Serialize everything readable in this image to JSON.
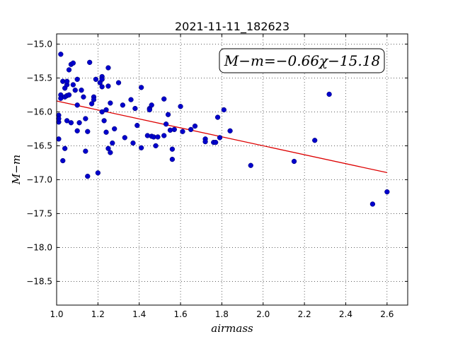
{
  "chart_data": {
    "type": "scatter",
    "title": "2021-11-11_182623",
    "xlabel": "airmass",
    "ylabel": "M−m",
    "annotation": "M−m=−0.66χ−15.18",
    "xlim": [
      1.0,
      2.7
    ],
    "ylim": [
      -18.85,
      -14.85
    ],
    "xticks": [
      1.0,
      1.2,
      1.4,
      1.6,
      1.8,
      2.0,
      2.2,
      2.4,
      2.6
    ],
    "xtick_labels": [
      "1.0",
      "1.2",
      "1.4",
      "1.6",
      "1.8",
      "2.0",
      "2.2",
      "2.4",
      "2.6"
    ],
    "yticks": [
      -15.0,
      -15.5,
      -16.0,
      -16.5,
      -17.0,
      -17.5,
      -18.0,
      -18.5
    ],
    "ytick_labels": [
      "−15.0",
      "−15.5",
      "−16.0",
      "−16.5",
      "−17.0",
      "−17.5",
      "−18.0",
      "−18.5"
    ],
    "grid": true,
    "point_color": "#0000cc",
    "fit": {
      "slope": -0.66,
      "intercept": -15.18,
      "x_range": [
        1.0,
        2.6
      ],
      "color": "#dd0000"
    },
    "x": [
      1.01,
      1.01,
      1.01,
      1.01,
      1.02,
      1.02,
      1.02,
      1.03,
      1.03,
      1.04,
      1.04,
      1.04,
      1.05,
      1.05,
      1.05,
      1.05,
      1.06,
      1.06,
      1.07,
      1.07,
      1.08,
      1.08,
      1.09,
      1.1,
      1.1,
      1.1,
      1.11,
      1.12,
      1.13,
      1.14,
      1.14,
      1.15,
      1.15,
      1.16,
      1.17,
      1.18,
      1.18,
      1.19,
      1.2,
      1.21,
      1.22,
      1.22,
      1.22,
      1.22,
      1.23,
      1.24,
      1.24,
      1.25,
      1.25,
      1.25,
      1.26,
      1.26,
      1.27,
      1.28,
      1.3,
      1.32,
      1.33,
      1.36,
      1.37,
      1.38,
      1.39,
      1.41,
      1.41,
      1.44,
      1.45,
      1.45,
      1.46,
      1.46,
      1.47,
      1.48,
      1.49,
      1.52,
      1.52,
      1.53,
      1.54,
      1.55,
      1.56,
      1.56,
      1.57,
      1.6,
      1.61,
      1.65,
      1.67,
      1.72,
      1.72,
      1.76,
      1.77,
      1.78,
      1.79,
      1.81,
      1.84,
      1.94,
      2.15,
      2.25,
      2.32,
      2.53,
      2.6
    ],
    "y": [
      -16.4,
      -16.15,
      -16.05,
      -16.1,
      -15.15,
      -15.75,
      -15.8,
      -16.72,
      -15.55,
      -15.78,
      -15.65,
      -16.54,
      -15.6,
      -15.55,
      -15.76,
      -16.13,
      -15.38,
      -15.75,
      -15.3,
      -16.16,
      -15.6,
      -15.28,
      -15.68,
      -15.52,
      -15.9,
      -16.28,
      -16.16,
      -15.68,
      -15.78,
      -16.1,
      -16.58,
      -16.95,
      -16.29,
      -15.27,
      -15.88,
      -15.78,
      -15.82,
      -15.52,
      -16.9,
      -15.57,
      -15.48,
      -15.52,
      -15.63,
      -16.0,
      -16.13,
      -16.3,
      -15.97,
      -15.35,
      -15.62,
      -16.54,
      -16.6,
      -15.87,
      -16.46,
      -16.25,
      -15.57,
      -15.9,
      -16.38,
      -15.82,
      -16.46,
      -15.95,
      -16.2,
      -15.64,
      -16.53,
      -16.35,
      -15.95,
      -15.97,
      -16.36,
      -15.9,
      -16.37,
      -16.5,
      -16.37,
      -15.81,
      -16.35,
      -16.18,
      -16.04,
      -16.27,
      -16.55,
      -16.7,
      -16.26,
      -15.92,
      -16.29,
      -16.26,
      -16.21,
      -16.4,
      -16.44,
      -16.45,
      -16.45,
      -16.08,
      -16.38,
      -15.97,
      -16.28,
      -16.79,
      -16.73,
      -16.42,
      -15.74,
      -17.36,
      -17.18
    ]
  }
}
